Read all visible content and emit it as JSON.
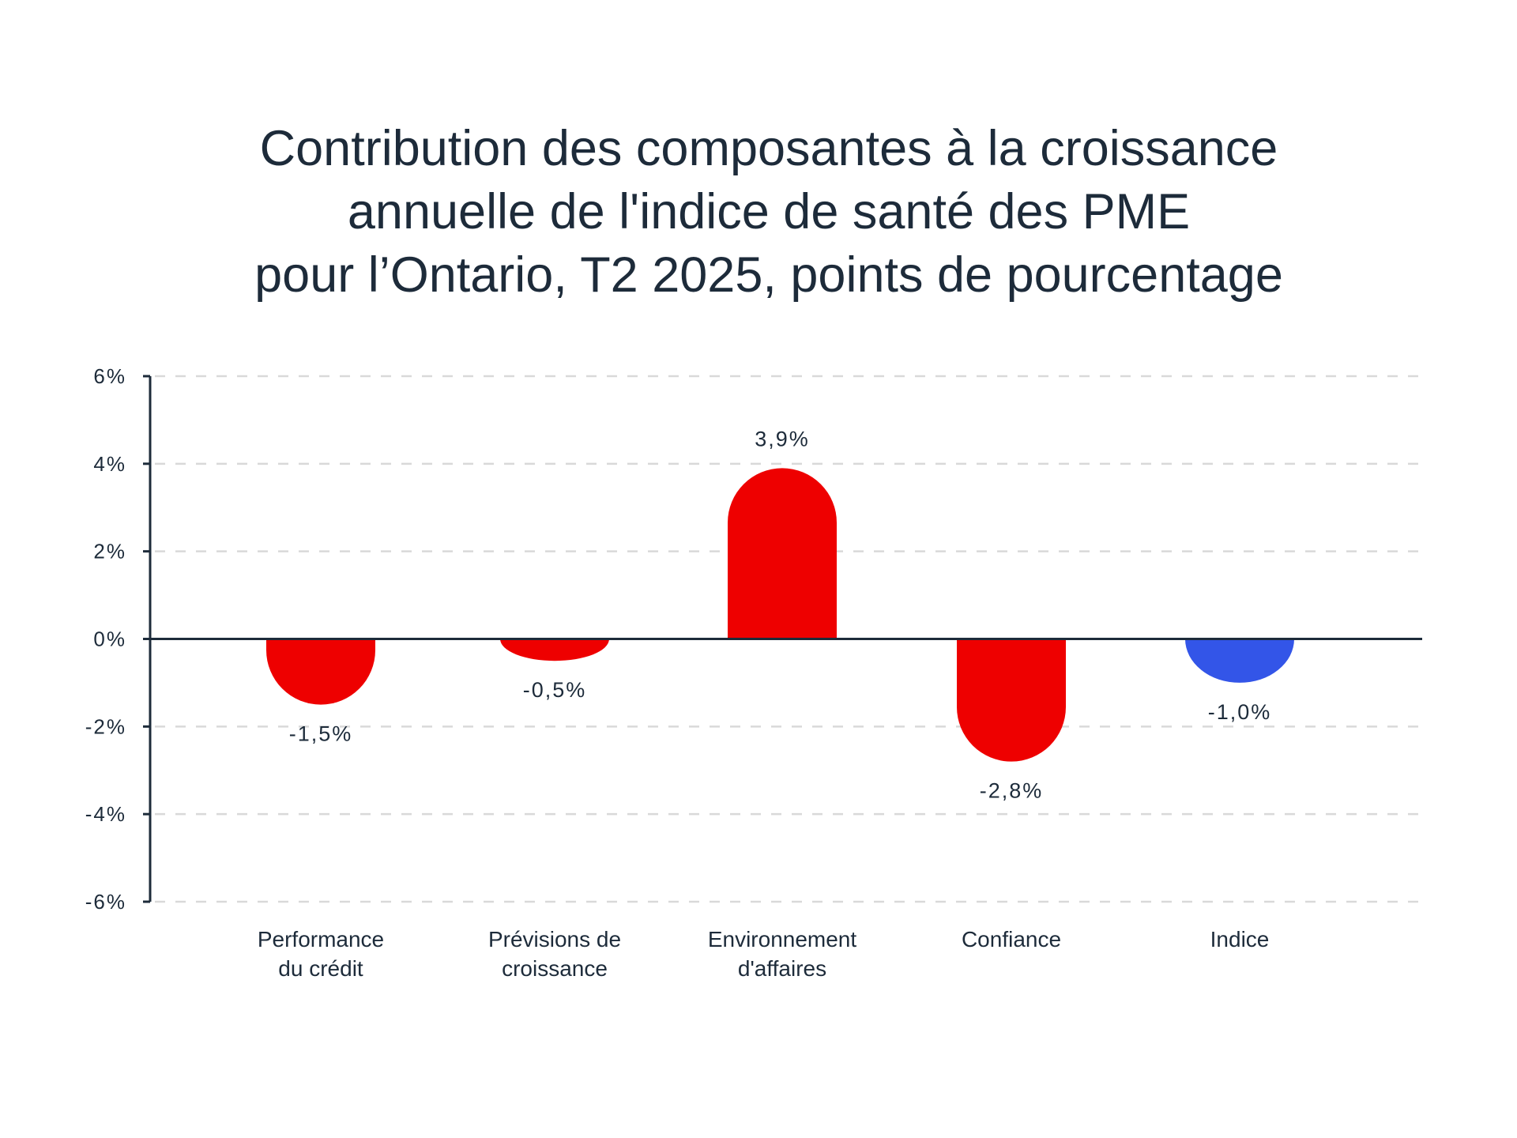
{
  "chart_data": {
    "type": "bar",
    "title_lines": [
      "Contribution des composantes à la croissance",
      "annuelle de l'indice de santé des PME",
      "pour l’Ontario, T2 2025, points de pourcentage"
    ],
    "xlabel": "",
    "ylabel": "",
    "categories": [
      [
        "Performance",
        "du crédit"
      ],
      [
        "Prévisions de",
        "croissance"
      ],
      [
        "Environnement",
        "d'affaires"
      ],
      [
        "Confiance"
      ],
      [
        "Indice"
      ]
    ],
    "values": [
      -1.5,
      -0.5,
      3.9,
      -2.8,
      -1.0
    ],
    "value_labels": [
      "-1,5%",
      "-0,5%",
      "3,9%",
      "-2,8%",
      "-1,0%"
    ],
    "bar_colors": [
      "#ee0000",
      "#ee0000",
      "#ee0000",
      "#ee0000",
      "#3355e8"
    ],
    "ylim": [
      -6,
      6
    ],
    "yticks": [
      6,
      4,
      2,
      0,
      -2,
      -4,
      -6
    ],
    "ytick_labels": [
      "6%",
      "4%",
      "2%",
      "0%",
      "-2%",
      "-4%",
      "-6%"
    ],
    "grid": true,
    "colors": {
      "text": "#1d2b3a",
      "axis": "#1d2b3a",
      "grid": "#d9d9d9"
    }
  }
}
